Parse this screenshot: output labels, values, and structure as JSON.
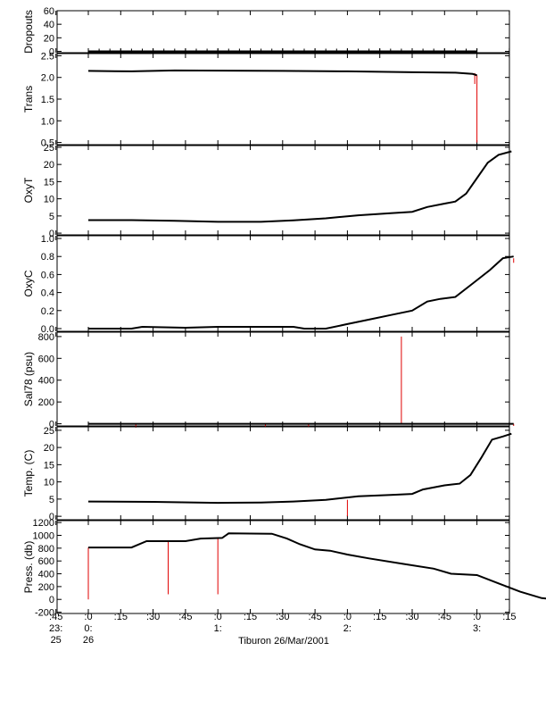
{
  "chart_data": {
    "type": "line",
    "caption": "Tiburon 26/Mar/2001",
    "colors": {
      "trace": "#000000",
      "spike": "#e00000",
      "axis": "#000000"
    },
    "x_axis": {
      "range_minutes": [
        -15,
        75
      ],
      "ticks": [
        {
          "minute": -15,
          "lines": [
            ":45",
            "23:",
            "25"
          ]
        },
        {
          "minute": 0,
          "lines": [
            ":0",
            "0:",
            "26"
          ]
        },
        {
          "minute": 15,
          "lines": [
            ":15",
            "",
            ""
          ]
        },
        {
          "minute": 30,
          "lines": [
            ":30",
            "",
            ""
          ]
        },
        {
          "minute": 45,
          "lines": [
            ":45",
            "",
            ""
          ]
        },
        {
          "minute": 60,
          "lines": [
            ":0",
            "1:",
            ""
          ]
        },
        {
          "minute": 75,
          "lines": [
            ":15",
            "",
            ""
          ]
        },
        {
          "minute": 90,
          "lines": [
            ":30",
            "",
            ""
          ]
        },
        {
          "minute": 105,
          "lines": [
            ":45",
            "",
            ""
          ]
        },
        {
          "minute": 120,
          "lines": [
            ":0",
            "2:",
            ""
          ]
        },
        {
          "minute": 135,
          "lines": [
            ":15",
            "",
            ""
          ]
        },
        {
          "minute": 150,
          "lines": [
            ":30",
            "",
            ""
          ]
        },
        {
          "minute": 165,
          "lines": [
            ":45",
            "",
            ""
          ]
        },
        {
          "minute": 180,
          "lines": [
            ":0",
            "3:",
            ""
          ]
        },
        {
          "minute": 195,
          "lines": [
            ":15",
            "",
            ""
          ]
        }
      ]
    },
    "panels": [
      {
        "id": "dropouts",
        "ylabel": "Dropouts",
        "ylim": [
          -2,
          60
        ],
        "yticks": [
          0,
          20,
          40,
          60
        ],
        "line": [
          [
            0,
            0
          ],
          [
            180,
            0
          ]
        ],
        "spikes": []
      },
      {
        "id": "trans",
        "ylabel": "Trans",
        "ylim": [
          0.45,
          2.55
        ],
        "yticks": [
          0.5,
          1.0,
          1.5,
          2.0,
          2.5
        ],
        "ytick_labels": [
          "0.5",
          "1.0",
          "1.5",
          "2.0",
          "2.5"
        ],
        "line": [
          [
            0,
            2.15
          ],
          [
            20,
            2.14
          ],
          [
            40,
            2.16
          ],
          [
            90,
            2.15
          ],
          [
            120,
            2.14
          ],
          [
            150,
            2.12
          ],
          [
            170,
            2.11
          ],
          [
            178,
            2.08
          ],
          [
            180,
            2.05
          ]
        ],
        "spikes": [
          [
            180,
            2.05,
            0.5
          ],
          [
            179,
            2.1,
            1.85
          ]
        ]
      },
      {
        "id": "oxyt",
        "ylabel": "OxyT",
        "ylim": [
          -0.5,
          25.5
        ],
        "yticks": [
          0,
          5,
          10,
          15,
          20,
          25
        ],
        "line": [
          [
            0,
            3.8
          ],
          [
            20,
            3.8
          ],
          [
            40,
            3.6
          ],
          [
            60,
            3.3
          ],
          [
            80,
            3.3
          ],
          [
            95,
            3.7
          ],
          [
            110,
            4.3
          ],
          [
            125,
            5.2
          ],
          [
            140,
            5.8
          ],
          [
            150,
            6.2
          ],
          [
            157,
            7.6
          ],
          [
            165,
            8.6
          ],
          [
            170,
            9.2
          ],
          [
            175,
            11.5
          ],
          [
            180,
            16
          ],
          [
            185,
            20.5
          ],
          [
            190,
            22.8
          ],
          [
            196,
            23.8
          ]
        ],
        "spikes": []
      },
      {
        "id": "oxyc",
        "ylabel": "OxyC",
        "ylim": [
          -0.03,
          1.03
        ],
        "yticks": [
          0.0,
          0.2,
          0.4,
          0.6,
          0.8,
          1.0
        ],
        "ytick_labels": [
          "0.0",
          "0.2",
          "0.4",
          "0.6",
          "0.8",
          "1.0"
        ],
        "line": [
          [
            0,
            0.0
          ],
          [
            20,
            0.0
          ],
          [
            25,
            0.02
          ],
          [
            45,
            0.01
          ],
          [
            60,
            0.02
          ],
          [
            95,
            0.02
          ],
          [
            100,
            0.0
          ],
          [
            110,
            0.0
          ],
          [
            120,
            0.05
          ],
          [
            130,
            0.1
          ],
          [
            140,
            0.15
          ],
          [
            150,
            0.2
          ],
          [
            157,
            0.3
          ],
          [
            163,
            0.33
          ],
          [
            170,
            0.35
          ],
          [
            178,
            0.5
          ],
          [
            186,
            0.65
          ],
          [
            192,
            0.78
          ],
          [
            197,
            0.8
          ]
        ],
        "spikes": [
          [
            197,
            0.78,
            0.73
          ]
        ]
      },
      {
        "id": "sal78",
        "ylabel": "Sal78 (psu)",
        "ylim": [
          -20,
          840
        ],
        "yticks": [
          0,
          200,
          400,
          600,
          800
        ],
        "line": [
          [
            0,
            0
          ],
          [
            197,
            0
          ]
        ],
        "spikes": [
          [
            145,
            0,
            800
          ],
          [
            22,
            0,
            -35
          ],
          [
            82,
            0,
            -30
          ],
          [
            102,
            0,
            -25
          ],
          [
            197,
            0,
            -20
          ]
        ]
      },
      {
        "id": "temp",
        "ylabel": "Temp. (C)",
        "ylim": [
          -1,
          26
        ],
        "yticks": [
          0,
          5,
          10,
          15,
          20,
          25
        ],
        "line": [
          [
            0,
            4.3
          ],
          [
            30,
            4.2
          ],
          [
            60,
            3.9
          ],
          [
            80,
            4.0
          ],
          [
            95,
            4.3
          ],
          [
            110,
            4.8
          ],
          [
            125,
            5.8
          ],
          [
            140,
            6.2
          ],
          [
            150,
            6.5
          ],
          [
            155,
            7.8
          ],
          [
            165,
            9.0
          ],
          [
            172,
            9.5
          ],
          [
            177,
            12
          ],
          [
            182,
            17
          ],
          [
            187,
            22.3
          ],
          [
            192,
            23.2
          ],
          [
            196,
            24
          ]
        ],
        "spikes": [
          [
            120,
            4.8,
            0
          ]
        ]
      },
      {
        "id": "press",
        "ylabel": "Press. (db)",
        "ylim": [
          -220,
          1230
        ],
        "yticks": [
          -200,
          0,
          200,
          400,
          600,
          800,
          1000,
          1200
        ],
        "line": [
          [
            0,
            810
          ],
          [
            20,
            810
          ],
          [
            27,
            910
          ],
          [
            45,
            910
          ],
          [
            52,
            950
          ],
          [
            62,
            960
          ],
          [
            65,
            1030
          ],
          [
            85,
            1025
          ],
          [
            92,
            950
          ],
          [
            98,
            860
          ],
          [
            105,
            780
          ],
          [
            112,
            760
          ],
          [
            120,
            700
          ],
          [
            130,
            640
          ],
          [
            145,
            560
          ],
          [
            160,
            480
          ],
          [
            168,
            400
          ],
          [
            180,
            380
          ],
          [
            190,
            250
          ],
          [
            200,
            120
          ],
          [
            210,
            20
          ],
          [
            216,
            0
          ]
        ],
        "spikes": [
          [
            0,
            810,
            0
          ],
          [
            37,
            910,
            80
          ],
          [
            60,
            960,
            80
          ]
        ]
      }
    ]
  }
}
